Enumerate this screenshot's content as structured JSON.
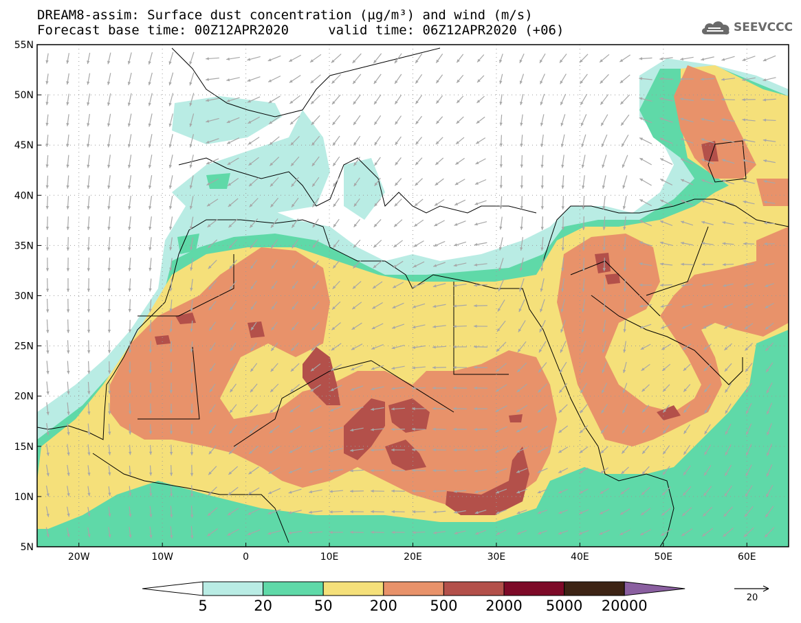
{
  "header": {
    "title_line1": "DREAM8-assim: Surface dust concentration (µg/m³) and wind (m/s)",
    "title_line2": "Forecast base time: 00Z12APR2020     valid time: 06Z12APR2020 (+06)",
    "logo_text": "SEEVCCC"
  },
  "map": {
    "lon_range": [
      -25,
      65
    ],
    "lat_range": [
      5,
      55
    ],
    "lat_labels": [
      "55N",
      "50N",
      "45N",
      "40N",
      "35N",
      "30N",
      "25N",
      "20N",
      "15N",
      "10N",
      "5N"
    ],
    "lon_labels": [
      "20W",
      "10W",
      "0",
      "10E",
      "20E",
      "30E",
      "40E",
      "50E",
      "60E"
    ],
    "grid": "dotted",
    "background_color": "#ffffff"
  },
  "legend": {
    "thresholds": [
      "5",
      "20",
      "50",
      "200",
      "500",
      "2000",
      "5000",
      "20000"
    ],
    "colors": [
      "#b9ece4",
      "#5fd9a8",
      "#f5e07a",
      "#e8926a",
      "#b3504a",
      "#7d0a28",
      "#3d2415",
      "#8a5fa0"
    ],
    "vector_reference": "20",
    "vector_reference_icon": "arrow-right-icon"
  },
  "wind_vector_color": "#a7a7a7"
}
